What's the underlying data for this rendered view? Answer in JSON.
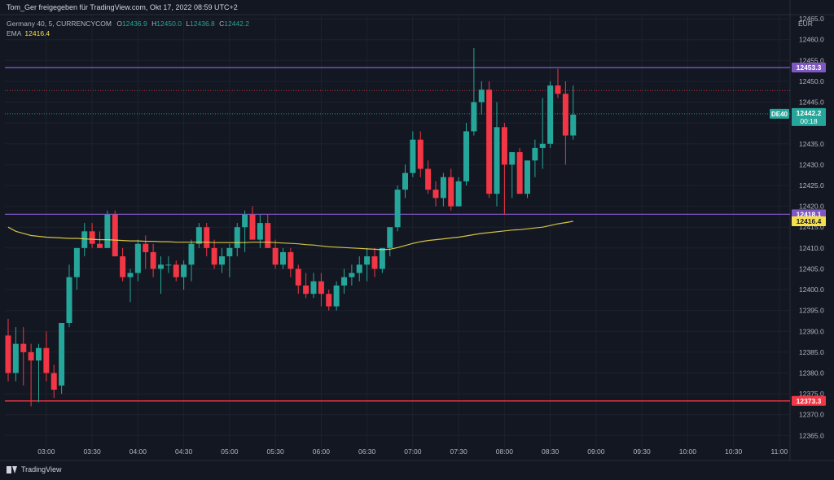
{
  "header": {
    "attribution": "Tom_Ger freigegeben für TradingView.com, Okt 17, 2022 08:59 UTC+2",
    "symbol_line": "Germany 40, 5, CURRENCYCOM",
    "ohlc": {
      "o_label": "O",
      "o": "12436.9",
      "h_label": "H",
      "h": "12450.0",
      "l_label": "L",
      "l": "12436.8",
      "c_label": "C",
      "c": "12442.2"
    },
    "ema_label": "EMA",
    "ema_value": "12416.4",
    "currency": "EUR"
  },
  "footer": {
    "brand": "TradingView"
  },
  "colors": {
    "background": "#131722",
    "up": "#26a69a",
    "down": "#f23645",
    "resistance": "#7e57c2",
    "support_line": "#f23645",
    "ema": "#f5e04a",
    "grid": "#1e222d",
    "axis_text": "#b2b5be"
  },
  "chart_data": {
    "type": "candlestick",
    "symbol": "DE40",
    "timeframe": "5",
    "y_range": [
      12363.5,
      12466
    ],
    "y_ticks": [
      12365,
      12370,
      12375,
      12380,
      12385,
      12390,
      12395,
      12400,
      12405,
      12410,
      12415,
      12420,
      12425,
      12430,
      12435,
      12440,
      12445,
      12450,
      12455,
      12460,
      12465
    ],
    "y_tick_labels": [
      "12365.0",
      "12370.0",
      "12375.0",
      "12380.0",
      "12385.0",
      "12390.0",
      "12395.0",
      "12400.0",
      "12405.0",
      "12410.0",
      "12415.0",
      "12420.0",
      "12425.0",
      "12430.0",
      "12435.0",
      "12440.0",
      "12445.0",
      "12450.0",
      "12455.0",
      "12460.0",
      "12465.0"
    ],
    "x_ticks": [
      "03:00",
      "03:30",
      "04:00",
      "04:30",
      "05:00",
      "05:30",
      "06:00",
      "06:30",
      "07:00",
      "07:30",
      "08:00",
      "08:30",
      "09:00",
      "09:30",
      "10:00",
      "10:30",
      "11:00"
    ],
    "x_start": "02:35",
    "candle_minutes": 5,
    "candles": [
      [
        12389,
        12393,
        12378,
        12380
      ],
      [
        12380,
        12391,
        12378,
        12387
      ],
      [
        12387,
        12391,
        12377,
        12385
      ],
      [
        12385,
        12387,
        12372,
        12383
      ],
      [
        12383,
        12387,
        12373,
        12386
      ],
      [
        12386,
        12390,
        12378,
        12380
      ],
      [
        12380,
        12382,
        12374,
        12376
      ],
      [
        12377,
        12392,
        12375,
        12392
      ],
      [
        12392,
        12406,
        12391,
        12403
      ],
      [
        12403,
        12410,
        12400,
        12410
      ],
      [
        12410,
        12416,
        12408,
        12414
      ],
      [
        12414,
        12416,
        12410,
        12411
      ],
      [
        12411,
        12414,
        12410,
        12410
      ],
      [
        12410,
        12419,
        12410,
        12418
      ],
      [
        12418,
        12419,
        12409,
        12408
      ],
      [
        12408,
        12410,
        12402,
        12403
      ],
      [
        12403,
        12405,
        12397,
        12404
      ],
      [
        12404,
        12412,
        12402,
        12411
      ],
      [
        12411,
        12413,
        12405,
        12409
      ],
      [
        12409,
        12411,
        12403,
        12405
      ],
      [
        12405,
        12408,
        12399,
        12406
      ],
      [
        12406,
        12408,
        12404,
        12406
      ],
      [
        12406,
        12407,
        12402,
        12403
      ],
      [
        12403,
        12407,
        12400,
        12406
      ],
      [
        12406,
        12412,
        12402,
        12411
      ],
      [
        12411,
        12416,
        12410,
        12415
      ],
      [
        12415,
        12416,
        12408,
        12410
      ],
      [
        12410,
        12412,
        12405,
        12406
      ],
      [
        12406,
        12410,
        12404,
        12408
      ],
      [
        12408,
        12411,
        12403,
        12410
      ],
      [
        12410,
        12416,
        12408,
        12415
      ],
      [
        12415,
        12419,
        12409,
        12418
      ],
      [
        12418,
        12420,
        12412,
        12412
      ],
      [
        12412,
        12418,
        12410,
        12416
      ],
      [
        12416,
        12418,
        12410,
        12410
      ],
      [
        12410,
        12412,
        12405,
        12406
      ],
      [
        12406,
        12410,
        12405,
        12409
      ],
      [
        12409,
        12410,
        12403,
        12405
      ],
      [
        12405,
        12406,
        12399,
        12401
      ],
      [
        12401,
        12404,
        12398,
        12399
      ],
      [
        12399,
        12404,
        12398,
        12402
      ],
      [
        12402,
        12404,
        12396,
        12399
      ],
      [
        12399,
        12400,
        12395,
        12396
      ],
      [
        12396,
        12402,
        12395,
        12401
      ],
      [
        12401,
        12405,
        12399,
        12403
      ],
      [
        12403,
        12406,
        12401,
        12404
      ],
      [
        12404,
        12408,
        12402,
        12406
      ],
      [
        12406,
        12410,
        12402,
        12408
      ],
      [
        12408,
        12410,
        12403,
        12405
      ],
      [
        12405,
        12410,
        12404,
        12410
      ],
      [
        12410,
        12415,
        12408,
        12415
      ],
      [
        12415,
        12425,
        12414,
        12424
      ],
      [
        12424,
        12430,
        12422,
        12428
      ],
      [
        12428,
        12438,
        12427,
        12436
      ],
      [
        12436,
        12438,
        12427,
        12429
      ],
      [
        12429,
        12431,
        12423,
        12424
      ],
      [
        12424,
        12426,
        12420,
        12422
      ],
      [
        12422,
        12428,
        12420,
        12427
      ],
      [
        12427,
        12429,
        12419,
        12420
      ],
      [
        12420,
        12427,
        12420,
        12426
      ],
      [
        12426,
        12440,
        12425,
        12438
      ],
      [
        12438,
        12458,
        12437,
        12445
      ],
      [
        12445,
        12450,
        12442,
        12448
      ],
      [
        12448,
        12450,
        12422,
        12423
      ],
      [
        12423,
        12445,
        12420,
        12439
      ],
      [
        12439,
        12440,
        12418,
        12430
      ],
      [
        12430,
        12432,
        12422,
        12433
      ],
      [
        12433,
        12434,
        12424,
        12423
      ],
      [
        12423,
        12431,
        12422,
        12431
      ],
      [
        12431,
        12436,
        12427,
        12434
      ],
      [
        12434,
        12446,
        12429,
        12435
      ],
      [
        12435,
        12450,
        12434,
        12449
      ],
      [
        12449,
        12453,
        12446,
        12447
      ],
      [
        12447,
        12450,
        12430,
        12437
      ],
      [
        12437,
        12449,
        12436,
        12442
      ]
    ],
    "ema": [
      12415,
      12414,
      12413.5,
      12413,
      12412.8,
      12412.6,
      12412.5,
      12412.4,
      12412.3,
      12412.3,
      12412.2,
      12412.1,
      12412,
      12412,
      12411.9,
      12411.8,
      12411.7,
      12411.7,
      12411.6,
      12411.6,
      12411.5,
      12411.5,
      12411.4,
      12411.4,
      12411.4,
      12411.4,
      12411.4,
      12411.3,
      12411.3,
      12411.3,
      12411.3,
      12411.3,
      12411.4,
      12411.4,
      12411.4,
      12411.3,
      12411.2,
      12411.1,
      12411,
      12410.8,
      12410.7,
      12410.5,
      12410.3,
      12410.2,
      12410.1,
      12410,
      12409.9,
      12409.8,
      12409.7,
      12409.6,
      12409.7,
      12410.1,
      12410.6,
      12411.1,
      12411.5,
      12411.8,
      12412,
      12412.2,
      12412.4,
      12412.6,
      12412.9,
      12413.2,
      12413.5,
      12413.7,
      12413.9,
      12414.1,
      12414.3,
      12414.4,
      12414.6,
      12414.8,
      12415,
      12415.4,
      12415.8,
      12416.1,
      12416.4
    ],
    "horizontal_lines": [
      {
        "value": 12453.3,
        "label": "12453.3",
        "color": "#7e57c2"
      },
      {
        "value": 12418.1,
        "label": "12418.1",
        "color": "#7e57c2"
      },
      {
        "value": 12373.3,
        "label": "12373.3",
        "color": "#f23645"
      }
    ],
    "current_price": {
      "value": 12442.2,
      "label": "12442.2",
      "countdown": "00:18",
      "symbol_tag": "DE40"
    },
    "ema_tag": {
      "value": 12416.4,
      "label": "12416.4"
    },
    "dotted_levels": [
      12447.8,
      12442.2
    ]
  }
}
